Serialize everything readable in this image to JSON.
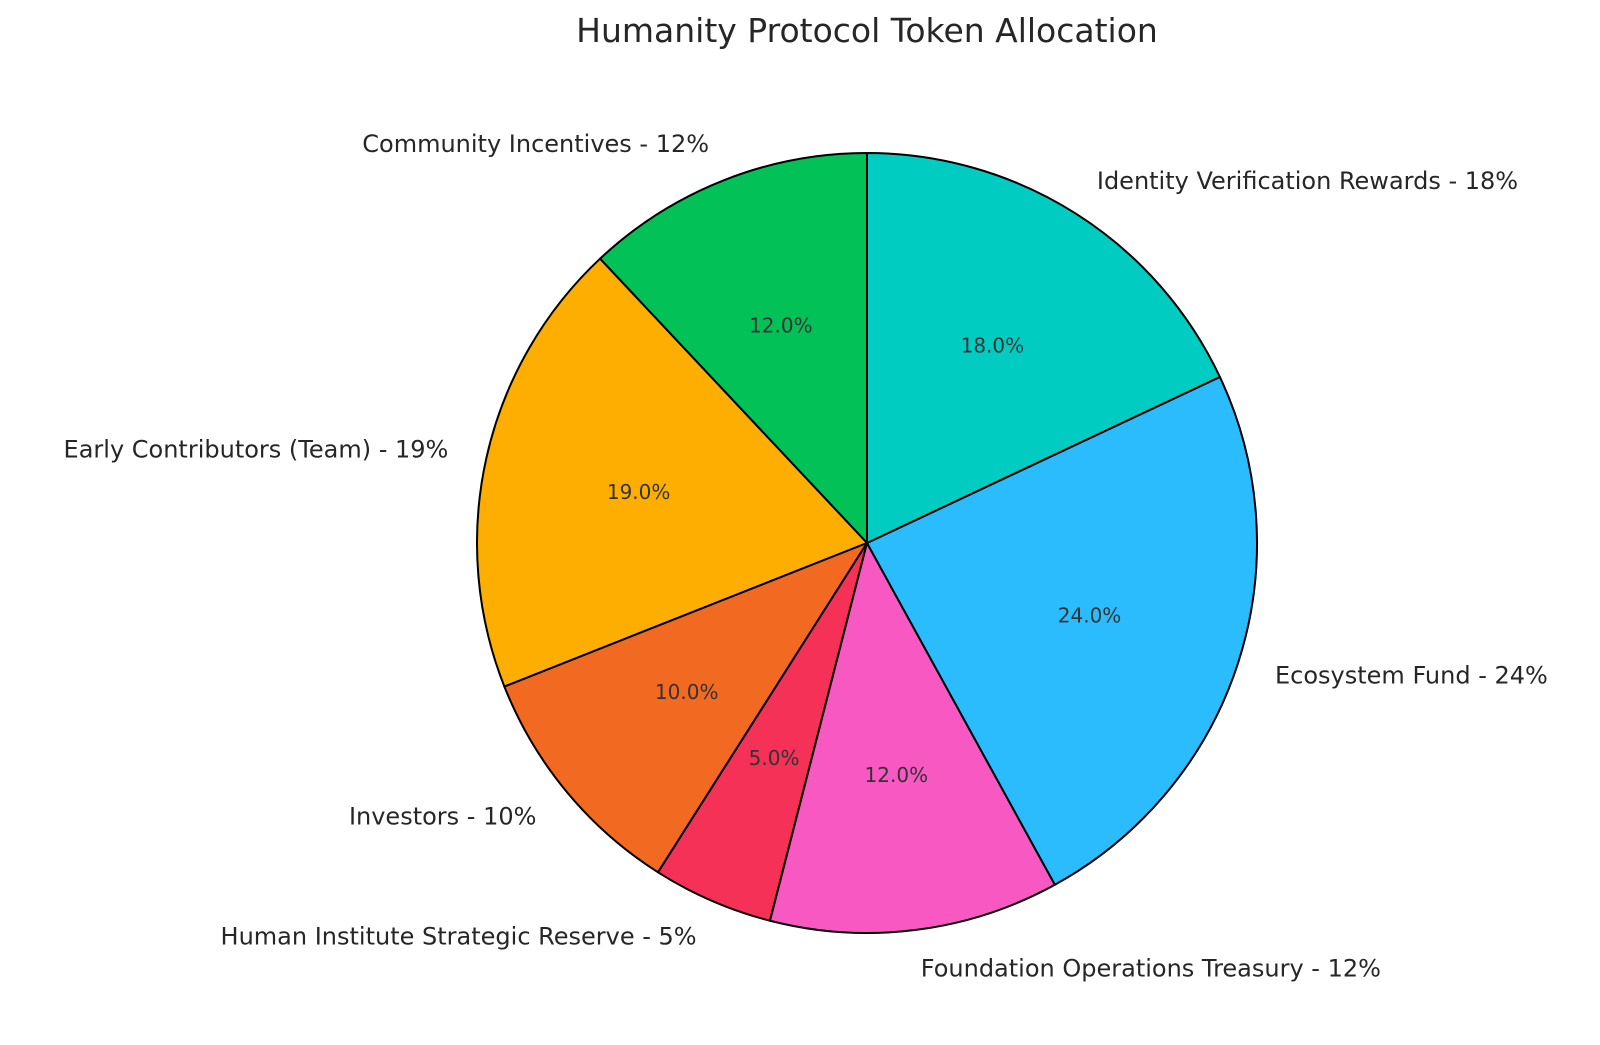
{
  "chart_data": {
    "type": "pie",
    "title": "Humanity Protocol Token Allocation",
    "start_angle_deg": 90,
    "direction": "counterclockwise",
    "order": "first slice starts at 12 o'clock going counterclockwise",
    "slices": [
      {
        "label": "Community Incentives - 12%",
        "value": 12,
        "pct_label": "12.0%",
        "color": "#02C157"
      },
      {
        "label": "Early Contributors (Team) - 19%",
        "value": 19,
        "pct_label": "19.0%",
        "color": "#FEAE00"
      },
      {
        "label": "Investors - 10%",
        "value": 10,
        "pct_label": "10.0%",
        "color": "#F26922"
      },
      {
        "label": "Human Institute Strategic Reserve - 5%",
        "value": 5,
        "pct_label": "5.0%",
        "color": "#F53158"
      },
      {
        "label": "Foundation Operations Treasury - 12%",
        "value": 12,
        "pct_label": "12.0%",
        "color": "#F858C1"
      },
      {
        "label": "Ecosystem Fund - 24%",
        "value": 24,
        "pct_label": "24.0%",
        "color": "#2BBCFE"
      },
      {
        "label": "Identity Verification Rewards - 18%",
        "value": 18,
        "pct_label": "18.0%",
        "color": "#00CCC1"
      }
    ]
  }
}
